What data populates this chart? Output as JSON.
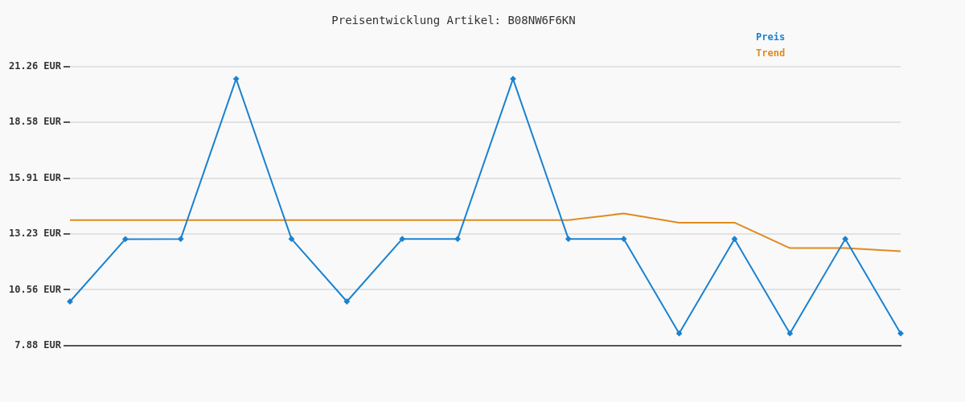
{
  "chart_data": {
    "type": "line",
    "title": "Preisentwicklung Artikel: B08NW6F6KN",
    "categories": [
      null,
      null,
      null,
      null,
      null,
      null,
      null,
      null,
      null,
      null,
      null,
      null,
      null,
      null,
      null,
      null
    ],
    "series": [
      {
        "name": "Preis",
        "color": "#1a82d0",
        "marker": "diamond",
        "values": [
          10.0,
          12.99,
          13.0,
          20.67,
          13.0,
          10.0,
          13.0,
          13.0,
          20.67,
          13.0,
          13.0,
          8.47,
          13.0,
          8.47,
          13.0,
          8.47
        ]
      },
      {
        "name": "Trend",
        "color": "#e08a1e",
        "marker": "none",
        "values": [
          13.9,
          13.9,
          13.9,
          13.9,
          13.9,
          13.9,
          13.9,
          13.9,
          13.9,
          13.9,
          14.22,
          13.78,
          13.78,
          12.56,
          12.56,
          12.41
        ]
      }
    ],
    "ylim": [
      7.88,
      21.26
    ],
    "yticks": [
      {
        "value": 7.88,
        "label": "7.88 EUR"
      },
      {
        "value": 10.56,
        "label": "10.56 EUR"
      },
      {
        "value": 13.23,
        "label": "13.23 EUR"
      },
      {
        "value": 15.91,
        "label": "15.91 EUR"
      },
      {
        "value": 18.58,
        "label": "18.58 EUR"
      },
      {
        "value": 21.26,
        "label": "21.26 EUR"
      }
    ],
    "grid": "y",
    "legend": "top right",
    "tick_labels": "y",
    "line_style": "solid"
  }
}
